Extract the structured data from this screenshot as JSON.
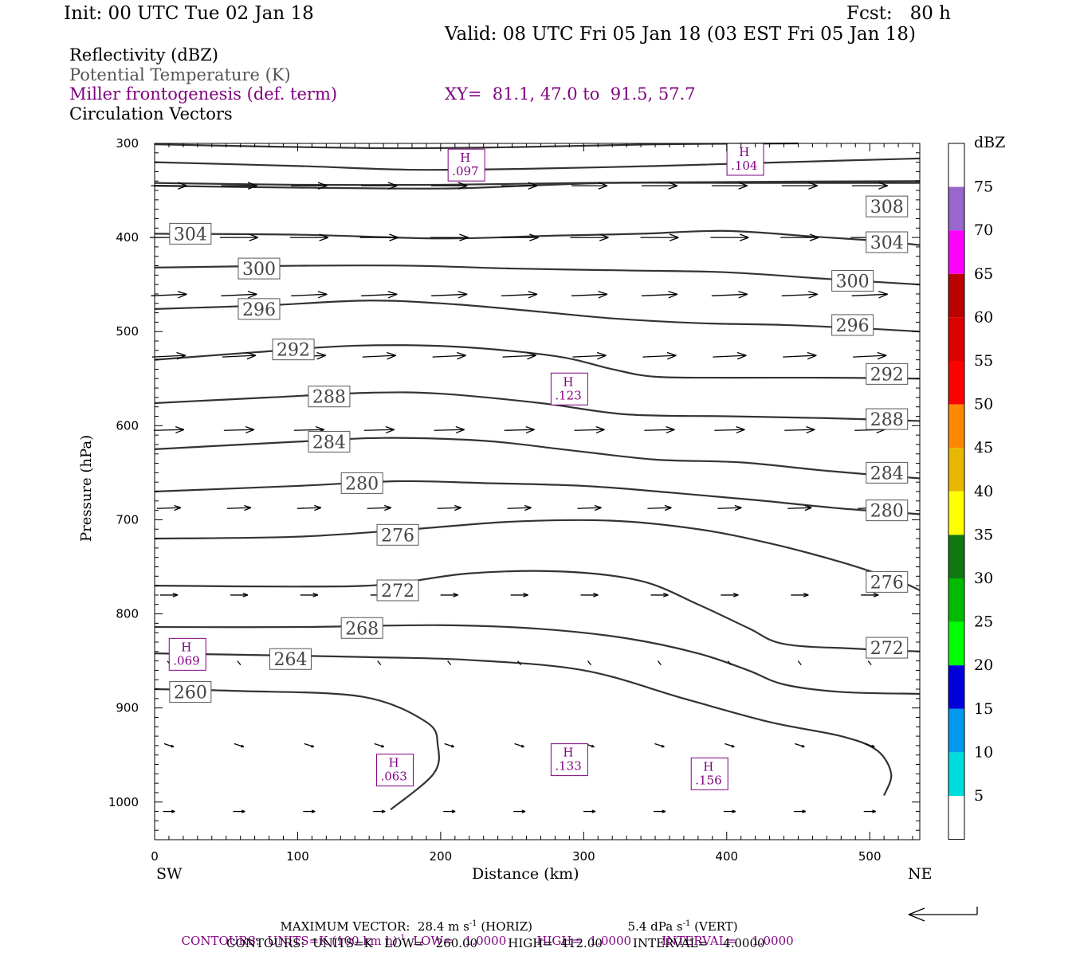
{
  "header": {
    "init": "Init: 00 UTC Tue 02 Jan 18",
    "fcst": "Fcst:   80 h",
    "valid": "Valid: 08 UTC Fri 05 Jan 18 (03 EST Fri 05 Jan 18)"
  },
  "fields": {
    "reflectivity": "Reflectivity (dBZ)",
    "theta": "Potential Temperature (K)",
    "frontogenesis": "Miller frontogenesis (def. term)",
    "vectors": "Circulation Vectors",
    "xy": "XY=  81.1, 47.0 to  91.5, 57.7"
  },
  "colorbar": {
    "title": "dBZ",
    "levels": [
      "75",
      "70",
      "65",
      "60",
      "55",
      "50",
      "45",
      "40",
      "35",
      "30",
      "25",
      "20",
      "15",
      "10",
      "5"
    ],
    "colors": [
      "#ffffff",
      "#9966cc",
      "#ff00ff",
      "#bb0000",
      "#dd0000",
      "#ff0000",
      "#ff8800",
      "#e8b800",
      "#ffff00",
      "#117711",
      "#00bb00",
      "#00ff00",
      "#0000dd",
      "#0099ee",
      "#00dddd",
      "#ffffff"
    ]
  },
  "chart_data": {
    "type": "cross-section",
    "xlabel": "Distance (km)",
    "ylabel": "Pressure (hPa)",
    "x_ticks": [
      0,
      100,
      200,
      300,
      400,
      500
    ],
    "y_ticks": [
      300,
      400,
      500,
      600,
      700,
      800,
      900,
      1000
    ],
    "xlim": [
      0,
      535
    ],
    "ylim": [
      300,
      1040
    ],
    "left_end": "SW",
    "right_end": "NE",
    "theta_contours": [
      {
        "value": "260",
        "points": [
          [
            0,
            880
          ],
          [
            60,
            882
          ],
          [
            145,
            888
          ],
          [
            190,
            915
          ],
          [
            198,
            940
          ],
          [
            195,
            970
          ],
          [
            165,
            1008
          ]
        ],
        "label": {
          "x": 25,
          "p": 883
        }
      },
      {
        "value": "264",
        "points": [
          [
            0,
            842
          ],
          [
            80,
            844
          ],
          [
            150,
            846
          ],
          [
            220,
            849
          ],
          [
            300,
            860
          ],
          [
            370,
            890
          ],
          [
            430,
            915
          ],
          [
            480,
            930
          ],
          [
            505,
            945
          ],
          [
            515,
            970
          ],
          [
            510,
            993
          ]
        ],
        "label": {
          "x": 488,
          "p": 935
        }
      },
      {
        "value": "268",
        "points": [
          [
            0,
            814
          ],
          [
            100,
            814
          ],
          [
            200,
            812
          ],
          [
            270,
            816
          ],
          [
            330,
            826
          ],
          [
            380,
            842
          ],
          [
            415,
            860
          ],
          [
            440,
            875
          ],
          [
            480,
            883
          ],
          [
            535,
            885
          ]
        ],
        "label": {
          "x": 512,
          "p": 883
        }
      },
      {
        "value": "272",
        "points": [
          [
            0,
            770
          ],
          [
            100,
            771
          ],
          [
            160,
            769
          ],
          [
            220,
            757
          ],
          [
            285,
            755
          ],
          [
            340,
            765
          ],
          [
            380,
            790
          ],
          [
            415,
            815
          ],
          [
            440,
            832
          ],
          [
            490,
            837
          ],
          [
            535,
            840
          ]
        ],
        "label": {
          "x": 512,
          "p": 836
        }
      },
      {
        "value": "276",
        "points": [
          [
            0,
            720
          ],
          [
            100,
            718
          ],
          [
            180,
            710
          ],
          [
            250,
            702
          ],
          [
            320,
            701
          ],
          [
            380,
            710
          ],
          [
            430,
            725
          ],
          [
            480,
            745
          ],
          [
            520,
            765
          ],
          [
            535,
            775
          ]
        ],
        "label": {
          "x": 512,
          "p": 766
        }
      },
      {
        "value": "280",
        "points": [
          [
            0,
            670
          ],
          [
            100,
            664
          ],
          [
            170,
            659
          ],
          [
            230,
            661
          ],
          [
            300,
            664
          ],
          [
            360,
            671
          ],
          [
            420,
            679
          ],
          [
            480,
            688
          ],
          [
            535,
            694
          ]
        ],
        "label": {
          "x": 512,
          "p": 690
        }
      },
      {
        "value": "284",
        "points": [
          [
            0,
            625
          ],
          [
            100,
            617
          ],
          [
            160,
            613
          ],
          [
            230,
            616
          ],
          [
            290,
            626
          ],
          [
            350,
            636
          ],
          [
            410,
            639
          ],
          [
            470,
            648
          ],
          [
            535,
            656
          ]
        ],
        "label": {
          "x": 512,
          "p": 650
        }
      },
      {
        "value": "288",
        "points": [
          [
            0,
            576
          ],
          [
            80,
            570
          ],
          [
            150,
            565
          ],
          [
            200,
            566
          ],
          [
            270,
            576
          ],
          [
            330,
            588
          ],
          [
            400,
            590
          ],
          [
            470,
            592
          ],
          [
            535,
            595
          ]
        ],
        "label": {
          "x": 512,
          "p": 593
        }
      },
      {
        "value": "292",
        "points": [
          [
            0,
            530
          ],
          [
            70,
            522
          ],
          [
            140,
            515
          ],
          [
            210,
            516
          ],
          [
            280,
            526
          ],
          [
            320,
            540
          ],
          [
            350,
            548
          ],
          [
            400,
            549
          ],
          [
            470,
            549
          ],
          [
            535,
            550
          ]
        ],
        "label": {
          "x": 512,
          "p": 545
        }
      },
      {
        "value": "296",
        "points": [
          [
            0,
            476
          ],
          [
            80,
            472
          ],
          [
            150,
            467
          ],
          [
            210,
            471
          ],
          [
            270,
            479
          ],
          [
            320,
            486
          ],
          [
            380,
            491
          ],
          [
            440,
            493
          ],
          [
            500,
            497
          ],
          [
            535,
            500
          ]
        ],
        "label": {
          "x": 488,
          "p": 493
        }
      },
      {
        "value": "300",
        "points": [
          [
            0,
            432
          ],
          [
            100,
            430
          ],
          [
            180,
            430
          ],
          [
            250,
            433
          ],
          [
            330,
            435
          ],
          [
            400,
            437
          ],
          [
            470,
            444
          ],
          [
            535,
            450
          ]
        ],
        "label": {
          "x": 488,
          "p": 446
        }
      },
      {
        "value": "304",
        "points": [
          [
            0,
            396
          ],
          [
            100,
            397
          ],
          [
            200,
            401
          ],
          [
            280,
            398
          ],
          [
            340,
            396
          ],
          [
            400,
            393
          ],
          [
            460,
            399
          ],
          [
            500,
            403
          ],
          [
            535,
            408
          ]
        ],
        "label": {
          "x": 512,
          "p": 405
        }
      },
      {
        "value": "308",
        "points": [
          [
            0,
            345
          ],
          [
            100,
            347
          ],
          [
            200,
            348
          ],
          [
            260,
            345
          ],
          [
            320,
            342
          ],
          [
            400,
            342
          ],
          [
            470,
            342
          ],
          [
            535,
            342
          ]
        ],
        "label": {
          "x": 512,
          "p": 367
        }
      },
      {
        "value": "",
        "points": [
          [
            0,
            342
          ],
          [
            100,
            344
          ],
          [
            200,
            344
          ],
          [
            300,
            342
          ],
          [
            400,
            341
          ],
          [
            535,
            340
          ]
        ],
        "label": null
      },
      {
        "value": "",
        "points": [
          [
            0,
            320
          ],
          [
            100,
            324
          ],
          [
            180,
            328
          ],
          [
            260,
            327
          ],
          [
            350,
            324
          ],
          [
            440,
            320
          ],
          [
            535,
            316
          ]
        ],
        "label": null
      },
      {
        "value": "",
        "points": [
          [
            0,
            301
          ],
          [
            150,
            305
          ],
          [
            250,
            304
          ],
          [
            350,
            301
          ],
          [
            450,
            300
          ]
        ],
        "label": null
      }
    ],
    "theta_label_values": [
      "260",
      "264",
      "268",
      "272",
      "276",
      "280",
      "284",
      "288",
      "292",
      "296",
      "300",
      "304",
      "308",
      "304",
      "300",
      "296",
      "292",
      "288",
      "284",
      "280",
      "276",
      "272"
    ],
    "frontogenesis_highs": [
      {
        "label": "H",
        "value": ".097",
        "x": 218,
        "p": 323
      },
      {
        "label": "H",
        "value": ".104",
        "x": 413,
        "p": 300
      },
      {
        "label": "H",
        "value": ".123",
        "x": 290,
        "p": 561
      },
      {
        "label": "H",
        "value": ".069",
        "x": 23,
        "p": 843
      },
      {
        "label": "H",
        "value": ".063",
        "x": 168,
        "p": 966
      },
      {
        "label": "H",
        "value": ".133",
        "x": 290,
        "p": 955
      },
      {
        "label": "H",
        "value": ".156",
        "x": 388,
        "p": 970
      }
    ],
    "reference_vector": {
      "horizontal": "28.4 m s-1",
      "vertical": "5.4 dPa s-1"
    }
  },
  "footer": {
    "max_vector": "MAXIMUM VECTOR:  28.4 m s",
    "max_vector_unit": "(HORIZ)",
    "vert_vector": "5.4 dPa s",
    "vert_unit": "(VERT)",
    "purple_contours": "CONTOURS:  UNITS=K (100 km h)",
    "purple_rest": "  LOW=   1.0000        HIGH=  1.0000        INTERVAL=    1.0000",
    "black_contours": "CONTOURS:  UNITS=K   LOW=   260.00        HIGH=  412.00        INTERVAL=    4.0000",
    "exp_minus1": "-1"
  }
}
